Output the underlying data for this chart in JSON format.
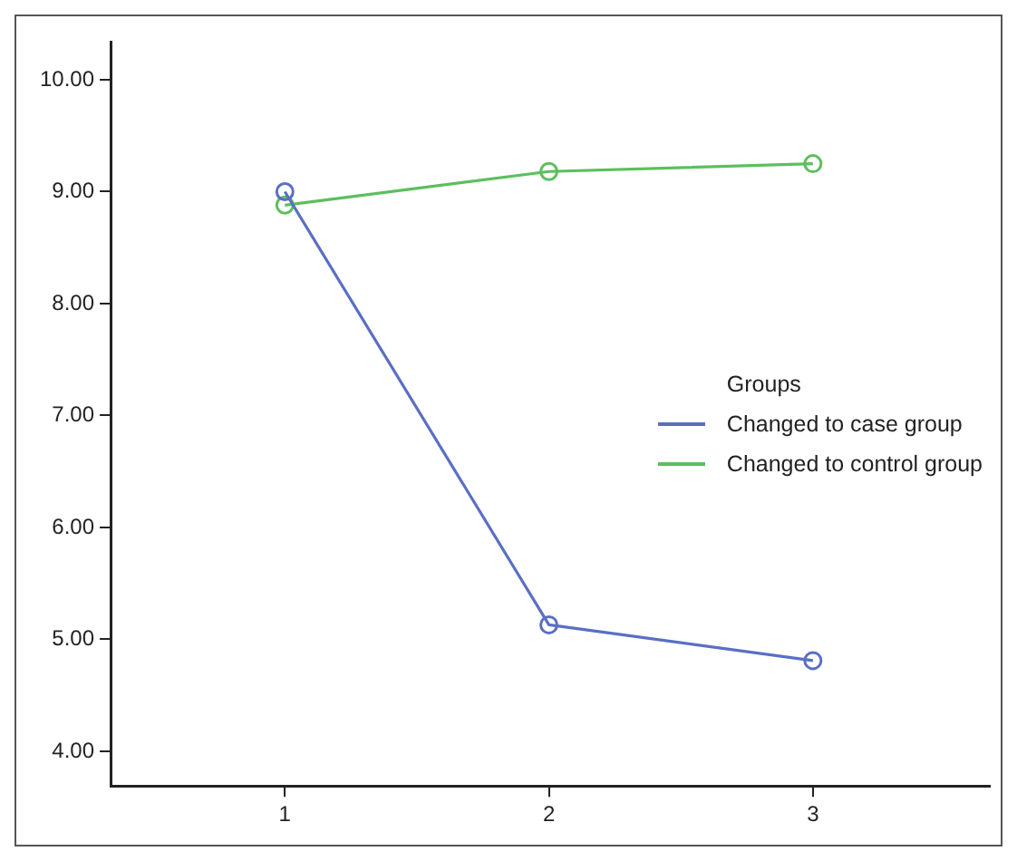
{
  "chart_data": {
    "type": "line",
    "legend_title": "Groups",
    "legend": "right",
    "marker": "circle",
    "grid": false,
    "x": [
      1,
      2,
      3
    ],
    "xlim": [
      0.34,
      3.67
    ],
    "xticks": [
      1,
      2,
      3
    ],
    "ylim": [
      3.69,
      10.34
    ],
    "yticks": [
      {
        "value": 4,
        "label": "4.00"
      },
      {
        "value": 5,
        "label": "5.00"
      },
      {
        "value": 6,
        "label": "6.00"
      },
      {
        "value": 7,
        "label": "7.00"
      },
      {
        "value": 8,
        "label": "8.00"
      },
      {
        "value": 9,
        "label": "9.00"
      },
      {
        "value": 10,
        "label": "10.00"
      }
    ],
    "series": [
      {
        "name": "Changed to case group",
        "color": "#5a6fc4",
        "values": [
          9.0,
          5.13,
          4.81
        ]
      },
      {
        "name": "Changed to control group",
        "color": "#5cbf5c",
        "values": [
          8.88,
          9.18,
          9.25
        ]
      }
    ]
  }
}
